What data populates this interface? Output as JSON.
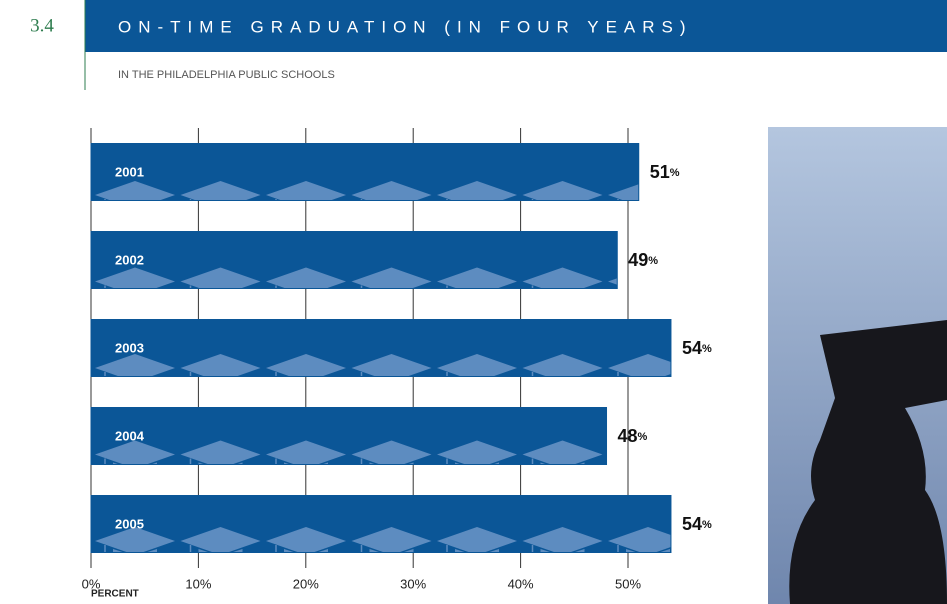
{
  "chart_data": {
    "type": "barh",
    "section": "3.4",
    "title": "ON-TIME GRADUATION (IN FOUR YEARS)",
    "subtitle": "IN THE PHILADELPHIA PUBLIC SCHOOLS",
    "categories": [
      "2001",
      "2002",
      "2003",
      "2004",
      "2005"
    ],
    "values": [
      51,
      49,
      54,
      48,
      54
    ],
    "value_labels": [
      "51%",
      "49%",
      "54%",
      "48%",
      "54%"
    ],
    "color": "#0b5697",
    "xlim": [
      0,
      55
    ],
    "xticks": [
      {
        "value": 0,
        "label": "0%"
      },
      {
        "value": 10,
        "label": "10%"
      },
      {
        "value": 20,
        "label": "20%"
      },
      {
        "value": 30,
        "label": "30%"
      },
      {
        "value": 40,
        "label": "40%"
      },
      {
        "value": 50,
        "label": "50%"
      }
    ],
    "xlabel": "PERCENT",
    "grid": true
  }
}
